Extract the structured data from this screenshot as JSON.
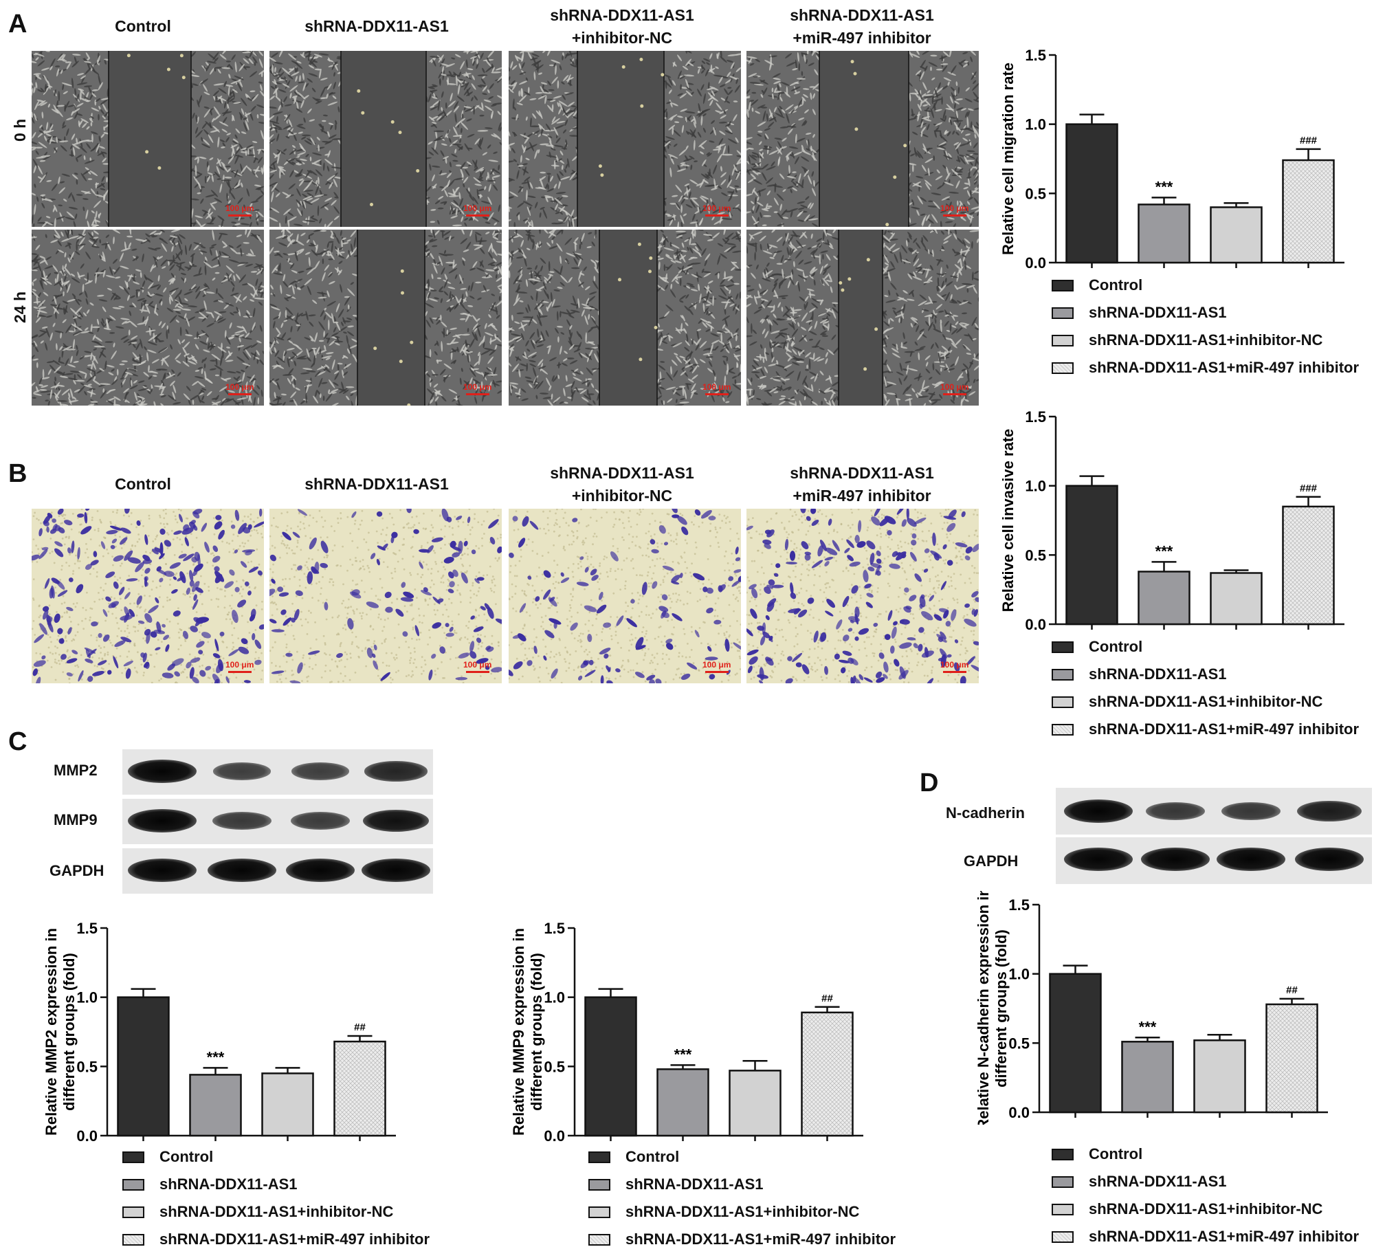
{
  "panels": {
    "a": "A",
    "b": "B",
    "c": "C",
    "d": "D"
  },
  "groups": [
    "Control",
    "shRNA-DDX11-AS1",
    "shRNA-DDX11-AS1+inhibitor-NC",
    "shRNA-DDX11-AS1+miR-497 inhibitor"
  ],
  "column_titles": [
    {
      "line1": "Control",
      "line2": ""
    },
    {
      "line1": "shRNA-DDX11-AS1",
      "line2": ""
    },
    {
      "line1": "shRNA-DDX11-AS1",
      "line2": "+inhibitor-NC"
    },
    {
      "line1": "shRNA-DDX11-AS1",
      "line2": "+miR-497 inhibitor"
    }
  ],
  "row_labels": {
    "t0": "0 h",
    "t24": "24 h"
  },
  "scale_bar_text": "100 μm",
  "blots": {
    "c_labels": [
      "MMP2",
      "MMP9",
      "GAPDH"
    ],
    "d_labels": [
      "N-cadherin",
      "GAPDH"
    ],
    "intensities_c": [
      [
        1.0,
        0.44,
        0.45,
        0.68
      ],
      [
        1.0,
        0.48,
        0.47,
        0.89
      ],
      [
        1.0,
        1.0,
        1.0,
        1.0
      ]
    ],
    "intensities_d": [
      [
        1.0,
        0.51,
        0.52,
        0.78
      ],
      [
        1.0,
        1.0,
        1.0,
        1.0
      ]
    ]
  },
  "colors": {
    "control": "#2f2f2f",
    "shrna": "#9a9a9e",
    "inhibitor_nc": "#d2d2d2",
    "mir497": "#ececec",
    "scale": "#e0201a",
    "stain": "#3b2ea0",
    "invasion_bg": "#e8e4c4",
    "wound_bg": "#6a6a6a",
    "gap": "#4e4e4e"
  },
  "chart_data": [
    {
      "id": "migration",
      "type": "bar",
      "categories": [
        "Control",
        "shRNA-DDX11-AS1",
        "shRNA-DDX11-AS1+inhibitor-NC",
        "shRNA-DDX11-AS1+miR-497 inhibitor"
      ],
      "values": [
        1.0,
        0.42,
        0.4,
        0.74
      ],
      "errors": [
        0.07,
        0.05,
        0.03,
        0.08
      ],
      "annotations": [
        "",
        "***",
        "",
        "###"
      ],
      "ylabel": "Relative cell migration rate",
      "ylabel2": "",
      "ylim": [
        0,
        1.5
      ],
      "yticks": [
        "0.0",
        "0.5",
        "1.0",
        "1.5"
      ],
      "legend": "below"
    },
    {
      "id": "invasion",
      "type": "bar",
      "categories": [
        "Control",
        "shRNA-DDX11-AS1",
        "shRNA-DDX11-AS1+inhibitor-NC",
        "shRNA-DDX11-AS1+miR-497 inhibitor"
      ],
      "values": [
        1.0,
        0.38,
        0.37,
        0.85
      ],
      "errors": [
        0.07,
        0.07,
        0.02,
        0.07
      ],
      "annotations": [
        "",
        "***",
        "",
        "###"
      ],
      "ylabel": "Relative cell invasive rate",
      "ylabel2": "",
      "ylim": [
        0,
        1.5
      ],
      "yticks": [
        "0.0",
        "0.5",
        "1.0",
        "1.5"
      ],
      "legend": "below"
    },
    {
      "id": "mmp2",
      "type": "bar",
      "categories": [
        "Control",
        "shRNA-DDX11-AS1",
        "shRNA-DDX11-AS1+inhibitor-NC",
        "shRNA-DDX11-AS1+miR-497 inhibitor"
      ],
      "values": [
        1.0,
        0.44,
        0.45,
        0.68
      ],
      "errors": [
        0.06,
        0.05,
        0.04,
        0.04
      ],
      "annotations": [
        "",
        "***",
        "",
        "##"
      ],
      "ylabel": "Relative MMP2 expression in",
      "ylabel2": "different groups (fold)",
      "ylim": [
        0,
        1.5
      ],
      "yticks": [
        "0.0",
        "0.5",
        "1.0",
        "1.5"
      ],
      "legend": "below"
    },
    {
      "id": "mmp9",
      "type": "bar",
      "categories": [
        "Control",
        "shRNA-DDX11-AS1",
        "shRNA-DDX11-AS1+inhibitor-NC",
        "shRNA-DDX11-AS1+miR-497 inhibitor"
      ],
      "values": [
        1.0,
        0.48,
        0.47,
        0.89
      ],
      "errors": [
        0.06,
        0.03,
        0.07,
        0.04
      ],
      "annotations": [
        "",
        "***",
        "",
        "##"
      ],
      "ylabel": "Relative MMP9 expression in",
      "ylabel2": "different groups (fold)",
      "ylim": [
        0,
        1.5
      ],
      "yticks": [
        "0.0",
        "0.5",
        "1.0",
        "1.5"
      ],
      "legend": "below"
    },
    {
      "id": "ncad",
      "type": "bar",
      "categories": [
        "Control",
        "shRNA-DDX11-AS1",
        "shRNA-DDX11-AS1+inhibitor-NC",
        "shRNA-DDX11-AS1+miR-497 inhibitor"
      ],
      "values": [
        1.0,
        0.51,
        0.52,
        0.78
      ],
      "errors": [
        0.06,
        0.03,
        0.04,
        0.04
      ],
      "annotations": [
        "",
        "***",
        "",
        "##"
      ],
      "ylabel": "Relative N-cadherin expression in",
      "ylabel2": "different groups (fold)",
      "ylim": [
        0,
        1.5
      ],
      "yticks": [
        "0.0",
        "0.5",
        "1.0",
        "1.5"
      ],
      "legend": "below"
    }
  ]
}
